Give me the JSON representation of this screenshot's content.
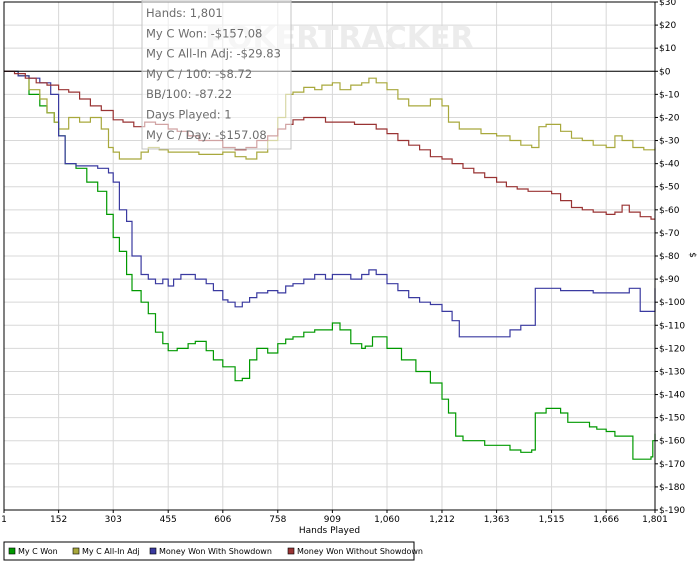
{
  "chart_data": {
    "type": "line",
    "xlabel": "Hands Played",
    "ylabel": "$",
    "x_ticks": [
      "1",
      "152",
      "303",
      "455",
      "606",
      "758",
      "909",
      "1,060",
      "1,212",
      "1,363",
      "1,515",
      "1,666",
      "1,801"
    ],
    "y_ticks": [
      "$30",
      "$20",
      "$10",
      "$0",
      "$-10",
      "$-20",
      "$-30",
      "$-40",
      "$-50",
      "$-60",
      "$-70",
      "$-80",
      "$-90",
      "$-100",
      "$-110",
      "$-120",
      "$-130",
      "$-140",
      "$-150",
      "$-160",
      "$-170",
      "$-180",
      "$-190"
    ],
    "xlim": [
      1,
      1801
    ],
    "ylim": [
      -190,
      30
    ],
    "legend_position": "bottom-left",
    "watermark": "POKERTRACKER",
    "tooltip": [
      "Hands: 1,801",
      "My C Won: -$157.08",
      "My C All-In Adj: -$29.83",
      "My C / 100: -$8.72",
      "BB/100: -87.22",
      "Days Played: 1",
      "My C / Day: -$157.08"
    ],
    "series": [
      {
        "name": "My C Won",
        "color": "#009900",
        "points": [
          [
            1,
            0
          ],
          [
            40,
            -2
          ],
          [
            70,
            -10
          ],
          [
            100,
            -15
          ],
          [
            120,
            -18
          ],
          [
            140,
            -22
          ],
          [
            152,
            -28
          ],
          [
            170,
            -40
          ],
          [
            200,
            -42
          ],
          [
            230,
            -48
          ],
          [
            260,
            -52
          ],
          [
            285,
            -62
          ],
          [
            303,
            -72
          ],
          [
            320,
            -78
          ],
          [
            340,
            -88
          ],
          [
            355,
            -95
          ],
          [
            380,
            -100
          ],
          [
            400,
            -105
          ],
          [
            420,
            -113
          ],
          [
            440,
            -118
          ],
          [
            455,
            -121
          ],
          [
            480,
            -120
          ],
          [
            510,
            -118
          ],
          [
            530,
            -117
          ],
          [
            560,
            -121
          ],
          [
            580,
            -125
          ],
          [
            606,
            -128
          ],
          [
            620,
            -128
          ],
          [
            640,
            -134
          ],
          [
            660,
            -133
          ],
          [
            680,
            -125
          ],
          [
            700,
            -120
          ],
          [
            730,
            -122
          ],
          [
            758,
            -118
          ],
          [
            780,
            -116
          ],
          [
            800,
            -115
          ],
          [
            830,
            -113
          ],
          [
            860,
            -112
          ],
          [
            890,
            -112
          ],
          [
            909,
            -109
          ],
          [
            930,
            -112
          ],
          [
            960,
            -118
          ],
          [
            990,
            -120
          ],
          [
            1000,
            -119
          ],
          [
            1020,
            -115
          ],
          [
            1060,
            -120
          ],
          [
            1100,
            -125
          ],
          [
            1140,
            -130
          ],
          [
            1180,
            -135
          ],
          [
            1212,
            -142
          ],
          [
            1230,
            -148
          ],
          [
            1250,
            -158
          ],
          [
            1270,
            -160
          ],
          [
            1300,
            -160
          ],
          [
            1330,
            -162
          ],
          [
            1363,
            -162
          ],
          [
            1400,
            -164
          ],
          [
            1430,
            -165
          ],
          [
            1460,
            -164
          ],
          [
            1470,
            -148
          ],
          [
            1500,
            -146
          ],
          [
            1515,
            -146
          ],
          [
            1540,
            -148
          ],
          [
            1560,
            -152
          ],
          [
            1590,
            -152
          ],
          [
            1620,
            -154
          ],
          [
            1640,
            -155
          ],
          [
            1666,
            -156
          ],
          [
            1690,
            -158
          ],
          [
            1720,
            -158
          ],
          [
            1740,
            -168
          ],
          [
            1760,
            -168
          ],
          [
            1790,
            -167
          ],
          [
            1795,
            -160
          ],
          [
            1801,
            -157
          ]
        ]
      },
      {
        "name": "My C All-In Adj",
        "color": "#a8a83c",
        "points": [
          [
            1,
            0
          ],
          [
            40,
            -2
          ],
          [
            70,
            -8
          ],
          [
            100,
            -12
          ],
          [
            120,
            -18
          ],
          [
            140,
            -22
          ],
          [
            152,
            -25
          ],
          [
            180,
            -20
          ],
          [
            210,
            -22
          ],
          [
            240,
            -20
          ],
          [
            270,
            -25
          ],
          [
            290,
            -33
          ],
          [
            303,
            -35
          ],
          [
            320,
            -38
          ],
          [
            350,
            -38
          ],
          [
            380,
            -35
          ],
          [
            400,
            -33
          ],
          [
            430,
            -34
          ],
          [
            455,
            -35
          ],
          [
            480,
            -35
          ],
          [
            510,
            -35
          ],
          [
            540,
            -36
          ],
          [
            570,
            -36
          ],
          [
            606,
            -35
          ],
          [
            640,
            -37
          ],
          [
            670,
            -38
          ],
          [
            700,
            -35
          ],
          [
            730,
            -30
          ],
          [
            758,
            -20
          ],
          [
            780,
            -10
          ],
          [
            800,
            -9
          ],
          [
            830,
            -7
          ],
          [
            860,
            -8
          ],
          [
            880,
            -6
          ],
          [
            909,
            -5
          ],
          [
            930,
            -8
          ],
          [
            960,
            -6
          ],
          [
            990,
            -5
          ],
          [
            1010,
            -3
          ],
          [
            1030,
            -5
          ],
          [
            1060,
            -8
          ],
          [
            1090,
            -12
          ],
          [
            1120,
            -15
          ],
          [
            1150,
            -15
          ],
          [
            1180,
            -12
          ],
          [
            1212,
            -15
          ],
          [
            1230,
            -22
          ],
          [
            1260,
            -25
          ],
          [
            1290,
            -25
          ],
          [
            1320,
            -27
          ],
          [
            1363,
            -28
          ],
          [
            1400,
            -30
          ],
          [
            1430,
            -32
          ],
          [
            1460,
            -33
          ],
          [
            1480,
            -24
          ],
          [
            1500,
            -23
          ],
          [
            1515,
            -23
          ],
          [
            1540,
            -26
          ],
          [
            1570,
            -29
          ],
          [
            1600,
            -30
          ],
          [
            1630,
            -32
          ],
          [
            1666,
            -33
          ],
          [
            1690,
            -28
          ],
          [
            1710,
            -30
          ],
          [
            1740,
            -33
          ],
          [
            1770,
            -34
          ],
          [
            1801,
            -33
          ]
        ]
      },
      {
        "name": "Money Won With Showdown",
        "color": "#3a3aa0",
        "points": [
          [
            1,
            0
          ],
          [
            40,
            -2
          ],
          [
            70,
            -3
          ],
          [
            100,
            -5
          ],
          [
            130,
            -10
          ],
          [
            152,
            -28
          ],
          [
            170,
            -40
          ],
          [
            200,
            -41
          ],
          [
            230,
            -41
          ],
          [
            260,
            -42
          ],
          [
            290,
            -44
          ],
          [
            303,
            -48
          ],
          [
            320,
            -60
          ],
          [
            340,
            -65
          ],
          [
            355,
            -80
          ],
          [
            380,
            -88
          ],
          [
            400,
            -90
          ],
          [
            420,
            -92
          ],
          [
            440,
            -90
          ],
          [
            455,
            -93
          ],
          [
            470,
            -90
          ],
          [
            490,
            -88
          ],
          [
            510,
            -88
          ],
          [
            530,
            -90
          ],
          [
            560,
            -92
          ],
          [
            580,
            -95
          ],
          [
            606,
            -99
          ],
          [
            620,
            -100
          ],
          [
            640,
            -102
          ],
          [
            660,
            -100
          ],
          [
            680,
            -98
          ],
          [
            700,
            -96
          ],
          [
            730,
            -95
          ],
          [
            758,
            -96
          ],
          [
            780,
            -93
          ],
          [
            800,
            -92
          ],
          [
            830,
            -90
          ],
          [
            860,
            -88
          ],
          [
            890,
            -90
          ],
          [
            909,
            -88
          ],
          [
            930,
            -88
          ],
          [
            960,
            -90
          ],
          [
            990,
            -88
          ],
          [
            1010,
            -86
          ],
          [
            1030,
            -88
          ],
          [
            1060,
            -92
          ],
          [
            1090,
            -95
          ],
          [
            1120,
            -98
          ],
          [
            1150,
            -100
          ],
          [
            1180,
            -101
          ],
          [
            1212,
            -104
          ],
          [
            1240,
            -108
          ],
          [
            1260,
            -115
          ],
          [
            1300,
            -115
          ],
          [
            1340,
            -115
          ],
          [
            1363,
            -115
          ],
          [
            1400,
            -112
          ],
          [
            1430,
            -110
          ],
          [
            1460,
            -110
          ],
          [
            1470,
            -94
          ],
          [
            1500,
            -94
          ],
          [
            1515,
            -94
          ],
          [
            1540,
            -95
          ],
          [
            1570,
            -95
          ],
          [
            1600,
            -95
          ],
          [
            1630,
            -96
          ],
          [
            1666,
            -96
          ],
          [
            1700,
            -96
          ],
          [
            1730,
            -94
          ],
          [
            1760,
            -104
          ],
          [
            1790,
            -104
          ],
          [
            1801,
            -94
          ]
        ]
      },
      {
        "name": "Money Won Without Showdown",
        "color": "#993333",
        "points": [
          [
            1,
            0
          ],
          [
            30,
            -1
          ],
          [
            60,
            -3
          ],
          [
            90,
            -5
          ],
          [
            120,
            -6
          ],
          [
            152,
            -8
          ],
          [
            180,
            -9
          ],
          [
            210,
            -12
          ],
          [
            240,
            -15
          ],
          [
            270,
            -17
          ],
          [
            303,
            -21
          ],
          [
            330,
            -22
          ],
          [
            360,
            -24
          ],
          [
            390,
            -22
          ],
          [
            420,
            -23
          ],
          [
            455,
            -25
          ],
          [
            480,
            -26
          ],
          [
            510,
            -28
          ],
          [
            540,
            -30
          ],
          [
            570,
            -30
          ],
          [
            606,
            -33
          ],
          [
            640,
            -34
          ],
          [
            670,
            -33
          ],
          [
            700,
            -30
          ],
          [
            730,
            -28
          ],
          [
            758,
            -25
          ],
          [
            780,
            -23
          ],
          [
            800,
            -21
          ],
          [
            830,
            -20
          ],
          [
            860,
            -20
          ],
          [
            890,
            -22
          ],
          [
            909,
            -22
          ],
          [
            940,
            -22
          ],
          [
            970,
            -23
          ],
          [
            1000,
            -23
          ],
          [
            1030,
            -25
          ],
          [
            1060,
            -27
          ],
          [
            1090,
            -30
          ],
          [
            1120,
            -32
          ],
          [
            1150,
            -34
          ],
          [
            1180,
            -37
          ],
          [
            1212,
            -38
          ],
          [
            1240,
            -40
          ],
          [
            1270,
            -42
          ],
          [
            1300,
            -44
          ],
          [
            1330,
            -46
          ],
          [
            1363,
            -48
          ],
          [
            1390,
            -50
          ],
          [
            1420,
            -51
          ],
          [
            1450,
            -52
          ],
          [
            1480,
            -52
          ],
          [
            1515,
            -53
          ],
          [
            1540,
            -56
          ],
          [
            1570,
            -59
          ],
          [
            1600,
            -60
          ],
          [
            1630,
            -61
          ],
          [
            1666,
            -62
          ],
          [
            1690,
            -61
          ],
          [
            1710,
            -58
          ],
          [
            1730,
            -61
          ],
          [
            1760,
            -63
          ],
          [
            1790,
            -64
          ],
          [
            1801,
            -64
          ]
        ]
      }
    ]
  }
}
